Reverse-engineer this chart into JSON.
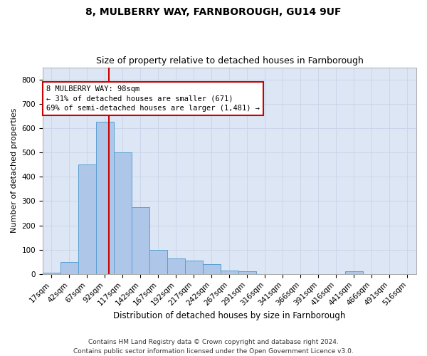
{
  "title": "8, MULBERRY WAY, FARNBOROUGH, GU14 9UF",
  "subtitle": "Size of property relative to detached houses in Farnborough",
  "xlabel": "Distribution of detached houses by size in Farnborough",
  "ylabel": "Number of detached properties",
  "footnote": "Contains HM Land Registry data © Crown copyright and database right 2024.\nContains public sector information licensed under the Open Government Licence v3.0.",
  "bin_labels": [
    "17sqm",
    "42sqm",
    "67sqm",
    "92sqm",
    "117sqm",
    "142sqm",
    "167sqm",
    "192sqm",
    "217sqm",
    "242sqm",
    "267sqm",
    "291sqm",
    "316sqm",
    "341sqm",
    "366sqm",
    "391sqm",
    "416sqm",
    "441sqm",
    "466sqm",
    "491sqm",
    "516sqm"
  ],
  "bar_values": [
    5,
    50,
    450,
    625,
    500,
    275,
    100,
    65,
    55,
    40,
    15,
    10,
    0,
    0,
    0,
    0,
    0,
    10,
    0,
    0,
    0
  ],
  "bar_color": "#aec6e8",
  "bar_edge_color": "#5a9fd4",
  "vline_color": "#cc0000",
  "vline_x_bin": 3.32,
  "annotation_text": "8 MULBERRY WAY: 98sqm\n← 31% of detached houses are smaller (671)\n69% of semi-detached houses are larger (1,481) →",
  "annotation_box_color": "#ffffff",
  "annotation_box_edge": "#cc0000",
  "ylim": [
    0,
    850
  ],
  "yticks": [
    0,
    100,
    200,
    300,
    400,
    500,
    600,
    700,
    800
  ],
  "grid_color": "#c8d4e8",
  "plot_bg_color": "#dce6f5",
  "title_fontsize": 10,
  "subtitle_fontsize": 9,
  "xlabel_fontsize": 8.5,
  "ylabel_fontsize": 8,
  "tick_fontsize": 7.5,
  "annot_fontsize": 7.5,
  "footnote_fontsize": 6.5
}
